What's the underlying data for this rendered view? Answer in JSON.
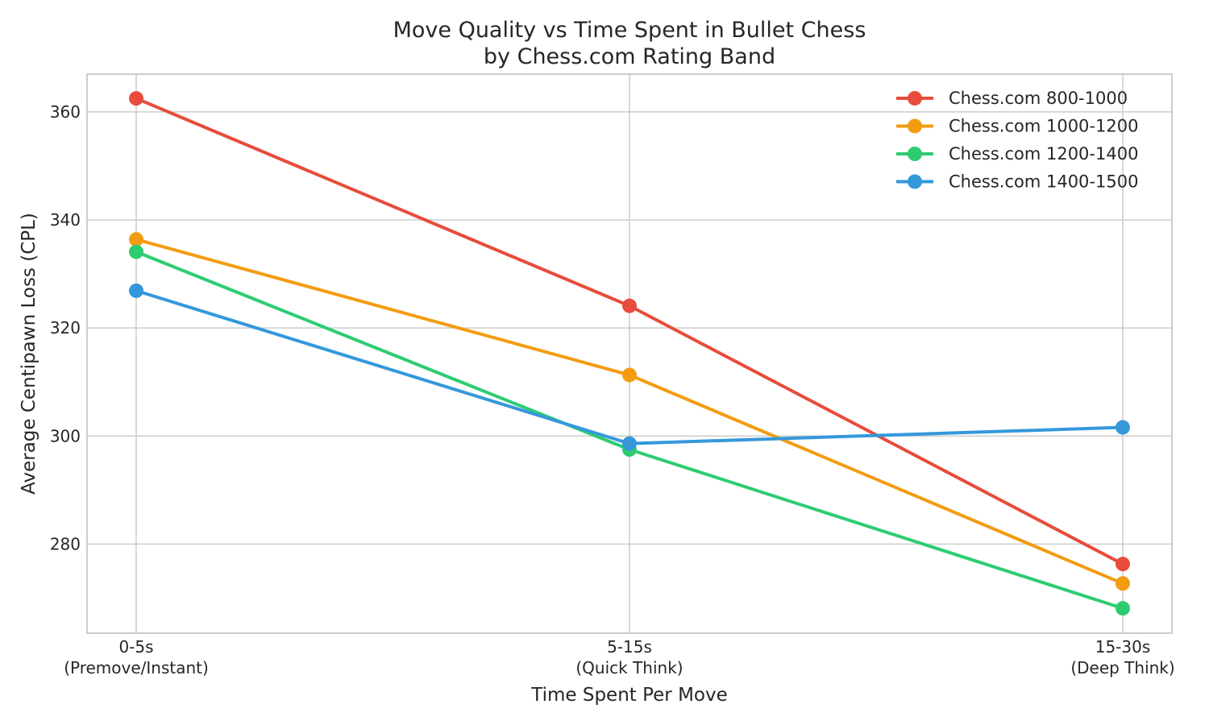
{
  "chart_data": {
    "type": "line",
    "title": [
      "Move Quality vs Time Spent in Bullet Chess",
      "by Chess.com Rating Band"
    ],
    "xlabel": "Time Spent Per Move",
    "ylabel": "Average Centipawn Loss (CPL)",
    "categories": [
      [
        "0-5s",
        "(Premove/Instant)"
      ],
      [
        "5-15s",
        "(Quick Think)"
      ],
      [
        "15-30s",
        "(Deep Think)"
      ]
    ],
    "ylim": [
      263.5,
      367
    ],
    "yticks": [
      280,
      300,
      320,
      340,
      360
    ],
    "grid": true,
    "legend_position": "top-right",
    "series": [
      {
        "name": "Chess.com 800-1000",
        "color": "#e74c3c",
        "values": [
          362.5,
          324.1,
          276.3
        ]
      },
      {
        "name": "Chess.com 1000-1200",
        "color": "#f39c12",
        "values": [
          336.4,
          311.3,
          272.7
        ]
      },
      {
        "name": "Chess.com 1200-1400",
        "color": "#2ecc71",
        "values": [
          334.1,
          297.5,
          268.1
        ]
      },
      {
        "name": "Chess.com 1400-1500",
        "color": "#3498db",
        "values": [
          326.9,
          298.6,
          301.6
        ]
      }
    ]
  }
}
